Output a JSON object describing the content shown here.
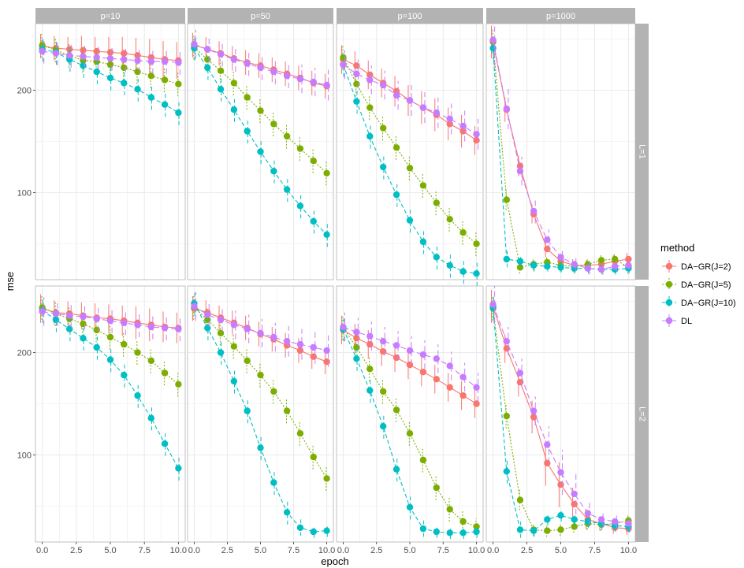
{
  "chart_data": {
    "type": "line",
    "xlabel": "epoch",
    "ylabel": "mse",
    "x": [
      0,
      1,
      2,
      3,
      4,
      5,
      6,
      7,
      8,
      9,
      10
    ],
    "xticks": [
      0,
      2.5,
      5,
      7.5,
      10
    ],
    "xtick_labels": [
      "0.0",
      "2.5",
      "5.0",
      "7.5",
      "10.0"
    ],
    "xlim": [
      -0.5,
      10.5
    ],
    "yticks": [
      100,
      200
    ],
    "ytick_labels": [
      "100",
      "200"
    ],
    "ylim": [
      15,
      265
    ],
    "grid": true,
    "facet_columns": [
      "p=10",
      "p=50",
      "p=100",
      "p=1000"
    ],
    "facet_rows": [
      "L=1",
      "L=2"
    ],
    "legend": {
      "title": "method",
      "position": "right",
      "entries": [
        "DA−GR(J=2)",
        "DA−GR(J=5)",
        "DA−GR(J=10)",
        "DL"
      ]
    },
    "colors": [
      "#F8766D",
      "#7CAE00",
      "#00BFC4",
      "#C77CFF"
    ],
    "panels": [
      {
        "col": "p=10",
        "row": "L=1",
        "series": [
          {
            "values": [
              243,
              241,
              240,
              239,
              238,
              237,
              236,
              234,
              232,
              230,
              229
            ],
            "err": [
              12,
              12,
              12,
              14,
              14,
              15,
              16,
              17,
              18,
              18,
              18
            ]
          },
          {
            "values": [
              244,
              239,
              234,
              229,
              228,
              225,
              222,
              218,
              214,
              210,
              206
            ],
            "err": [
              12,
              12,
              12,
              12,
              12,
              12,
              12,
              12,
              12,
              12,
              12
            ]
          },
          {
            "values": [
              240,
              237,
              230,
              224,
              218,
              212,
              207,
              201,
              193,
              186,
              178
            ],
            "err": [
              12,
              12,
              12,
              12,
              12,
              12,
              12,
              12,
              12,
              12,
              12
            ]
          },
          {
            "values": [
              238,
              236,
              234,
              233,
              232,
              231,
              230,
              229,
              228,
              228,
              227
            ],
            "err": [
              12,
              12,
              12,
              12,
              12,
              12,
              12,
              12,
              12,
              12,
              12
            ]
          }
        ]
      },
      {
        "col": "p=50",
        "row": "L=1",
        "series": [
          {
            "values": [
              244,
              240,
              236,
              231,
              227,
              224,
              220,
              216,
              212,
              207,
              204
            ],
            "err": [
              12,
              12,
              12,
              12,
              12,
              12,
              12,
              12,
              12,
              12,
              12
            ]
          },
          {
            "values": [
              242,
              230,
              219,
              207,
              193,
              180,
              167,
              155,
              143,
              131,
              119
            ],
            "err": [
              12,
              12,
              12,
              12,
              12,
              12,
              12,
              12,
              12,
              12,
              12
            ]
          },
          {
            "values": [
              241,
              222,
              201,
              181,
              160,
              140,
              121,
              103,
              87,
              72,
              59
            ],
            "err": [
              12,
              12,
              12,
              12,
              12,
              12,
              12,
              12,
              12,
              12,
              12
            ]
          },
          {
            "values": [
              245,
              240,
              235,
              230,
              226,
              222,
              218,
              214,
              211,
              208,
              205
            ],
            "err": [
              14,
              12,
              12,
              12,
              12,
              12,
              12,
              12,
              14,
              14,
              15
            ]
          }
        ]
      },
      {
        "col": "p=100",
        "row": "L=1",
        "series": [
          {
            "values": [
              230,
              224,
              215,
              207,
              199,
              190,
              183,
              176,
              167,
              160,
              151
            ],
            "err": [
              14,
              14,
              14,
              14,
              15,
              15,
              16,
              16,
              16,
              16,
              14
            ]
          },
          {
            "values": [
              232,
              206,
              183,
              163,
              144,
              124,
              107,
              90,
              74,
              61,
              50
            ],
            "err": [
              12,
              12,
              12,
              12,
              12,
              12,
              12,
              12,
              12,
              12,
              12
            ]
          },
          {
            "values": [
              225,
              189,
              155,
              125,
              98,
              73,
              52,
              37,
              29,
              23,
              21
            ],
            "err": [
              12,
              12,
              12,
              12,
              12,
              12,
              12,
              12,
              12,
              12,
              12
            ]
          },
          {
            "values": [
              225,
              216,
              210,
              205,
              195,
              190,
              183,
              178,
              172,
              165,
              157
            ],
            "err": [
              14,
              14,
              14,
              14,
              14,
              15,
              15,
              15,
              15,
              15,
              15
            ]
          }
        ]
      },
      {
        "col": "p=1000",
        "row": "L=1",
        "series": [
          {
            "values": [
              247,
              181,
              126,
              79,
              45,
              33,
              29,
              29,
              30,
              33,
              35
            ],
            "err": [
              16,
              12,
              10,
              9,
              8,
              6,
              6,
              5,
              5,
              6,
              6
            ]
          },
          {
            "values": [
              248,
              93,
              27,
              30,
              32,
              29,
              28,
              30,
              34,
              35,
              27
            ],
            "err": [
              12,
              10,
              6,
              6,
              6,
              6,
              6,
              6,
              6,
              6,
              6
            ]
          },
          {
            "values": [
              241,
              35,
              33,
              29,
              28,
              27,
              26,
              26,
              25,
              25,
              26
            ],
            "err": [
              12,
              8,
              6,
              6,
              5,
              5,
              5,
              5,
              5,
              5,
              5
            ]
          },
          {
            "values": [
              249,
              182,
              121,
              82,
              54,
              37,
              30,
              26,
              25,
              28,
              29
            ],
            "err": [
              26,
              20,
              14,
              12,
              10,
              8,
              6,
              6,
              5,
              5,
              5
            ]
          }
        ]
      },
      {
        "col": "p=10",
        "row": "L=2",
        "series": [
          {
            "values": [
              243,
              239,
              238,
              236,
              234,
              233,
              231,
              229,
              227,
              225,
              224
            ],
            "err": [
              14,
              12,
              12,
              13,
              14,
              14,
              15,
              16,
              16,
              15,
              15
            ]
          },
          {
            "values": [
              244,
              238,
              233,
              228,
              222,
              215,
              208,
              200,
              192,
              180,
              169
            ],
            "err": [
              12,
              12,
              12,
              12,
              12,
              12,
              12,
              12,
              12,
              12,
              12
            ]
          },
          {
            "values": [
              241,
              232,
              223,
              214,
              205,
              193,
              178,
              158,
              136,
              111,
              87
            ],
            "err": [
              12,
              12,
              12,
              12,
              12,
              12,
              12,
              12,
              12,
              12,
              12
            ]
          },
          {
            "values": [
              240,
              238,
              236,
              235,
              233,
              231,
              229,
              227,
              225,
              224,
              223
            ],
            "err": [
              14,
              12,
              12,
              12,
              12,
              12,
              12,
              12,
              12,
              12,
              12
            ]
          }
        ]
      },
      {
        "col": "p=50",
        "row": "L=2",
        "series": [
          {
            "values": [
              243,
              239,
              234,
              229,
              224,
              218,
              213,
              207,
              202,
              196,
              191
            ],
            "err": [
              12,
              12,
              12,
              12,
              12,
              12,
              12,
              12,
              12,
              12,
              12
            ]
          },
          {
            "values": [
              244,
              232,
              219,
              206,
              192,
              178,
              162,
              143,
              121,
              98,
              77
            ],
            "err": [
              12,
              12,
              12,
              12,
              12,
              12,
              12,
              12,
              12,
              12,
              12
            ]
          },
          {
            "values": [
              248,
              224,
              200,
              172,
              143,
              107,
              73,
              44,
              29,
              25,
              26
            ],
            "err": [
              12,
              12,
              12,
              12,
              12,
              12,
              12,
              12,
              8,
              6,
              6
            ]
          },
          {
            "values": [
              245,
              237,
              232,
              227,
              223,
              219,
              215,
              211,
              208,
              205,
              202
            ],
            "err": [
              14,
              12,
              12,
              14,
              14,
              14,
              14,
              15,
              15,
              16,
              16
            ]
          }
        ]
      },
      {
        "col": "p=100",
        "row": "L=2",
        "series": [
          {
            "values": [
              222,
              214,
              208,
              201,
              195,
              188,
              181,
              174,
              166,
              158,
              150
            ],
            "err": [
              14,
              14,
              14,
              14,
              14,
              14,
              14,
              14,
              14,
              14,
              14
            ]
          },
          {
            "values": [
              224,
              205,
              184,
              162,
              144,
              121,
              95,
              68,
              47,
              35,
              30
            ],
            "err": [
              12,
              12,
              12,
              12,
              12,
              12,
              12,
              12,
              12,
              10,
              8
            ]
          },
          {
            "values": [
              223,
              194,
              163,
              128,
              86,
              49,
              28,
              25,
              24,
              24,
              25
            ],
            "err": [
              12,
              12,
              12,
              12,
              12,
              12,
              8,
              6,
              6,
              6,
              6
            ]
          },
          {
            "values": [
              225,
              220,
              216,
              211,
              207,
              202,
              198,
              194,
              187,
              176,
              166
            ],
            "err": [
              14,
              14,
              14,
              14,
              14,
              14,
              14,
              14,
              14,
              14,
              14
            ]
          }
        ]
      },
      {
        "col": "p=1000",
        "row": "L=2",
        "series": [
          {
            "values": [
              245,
              204,
              171,
              137,
              92,
              71,
              52,
              37,
              33,
              29,
              28
            ],
            "err": [
              16,
              14,
              14,
              16,
              22,
              22,
              16,
              10,
              7,
              6,
              6
            ]
          },
          {
            "values": [
              243,
              138,
              56,
              27,
              26,
              27,
              30,
              33,
              32,
              33,
              36
            ],
            "err": [
              12,
              12,
              10,
              6,
              6,
              6,
              6,
              6,
              6,
              6,
              6
            ]
          },
          {
            "values": [
              244,
              84,
              27,
              26,
              37,
              41,
              37,
              35,
              33,
              31,
              30
            ],
            "err": [
              12,
              12,
              8,
              6,
              6,
              6,
              6,
              6,
              6,
              6,
              6
            ]
          },
          {
            "values": [
              247,
              211,
              180,
              143,
              110,
              83,
              62,
              43,
              37,
              35,
              33
            ],
            "err": [
              18,
              14,
              14,
              14,
              18,
              22,
              20,
              12,
              8,
              8,
              8
            ]
          }
        ]
      }
    ]
  }
}
